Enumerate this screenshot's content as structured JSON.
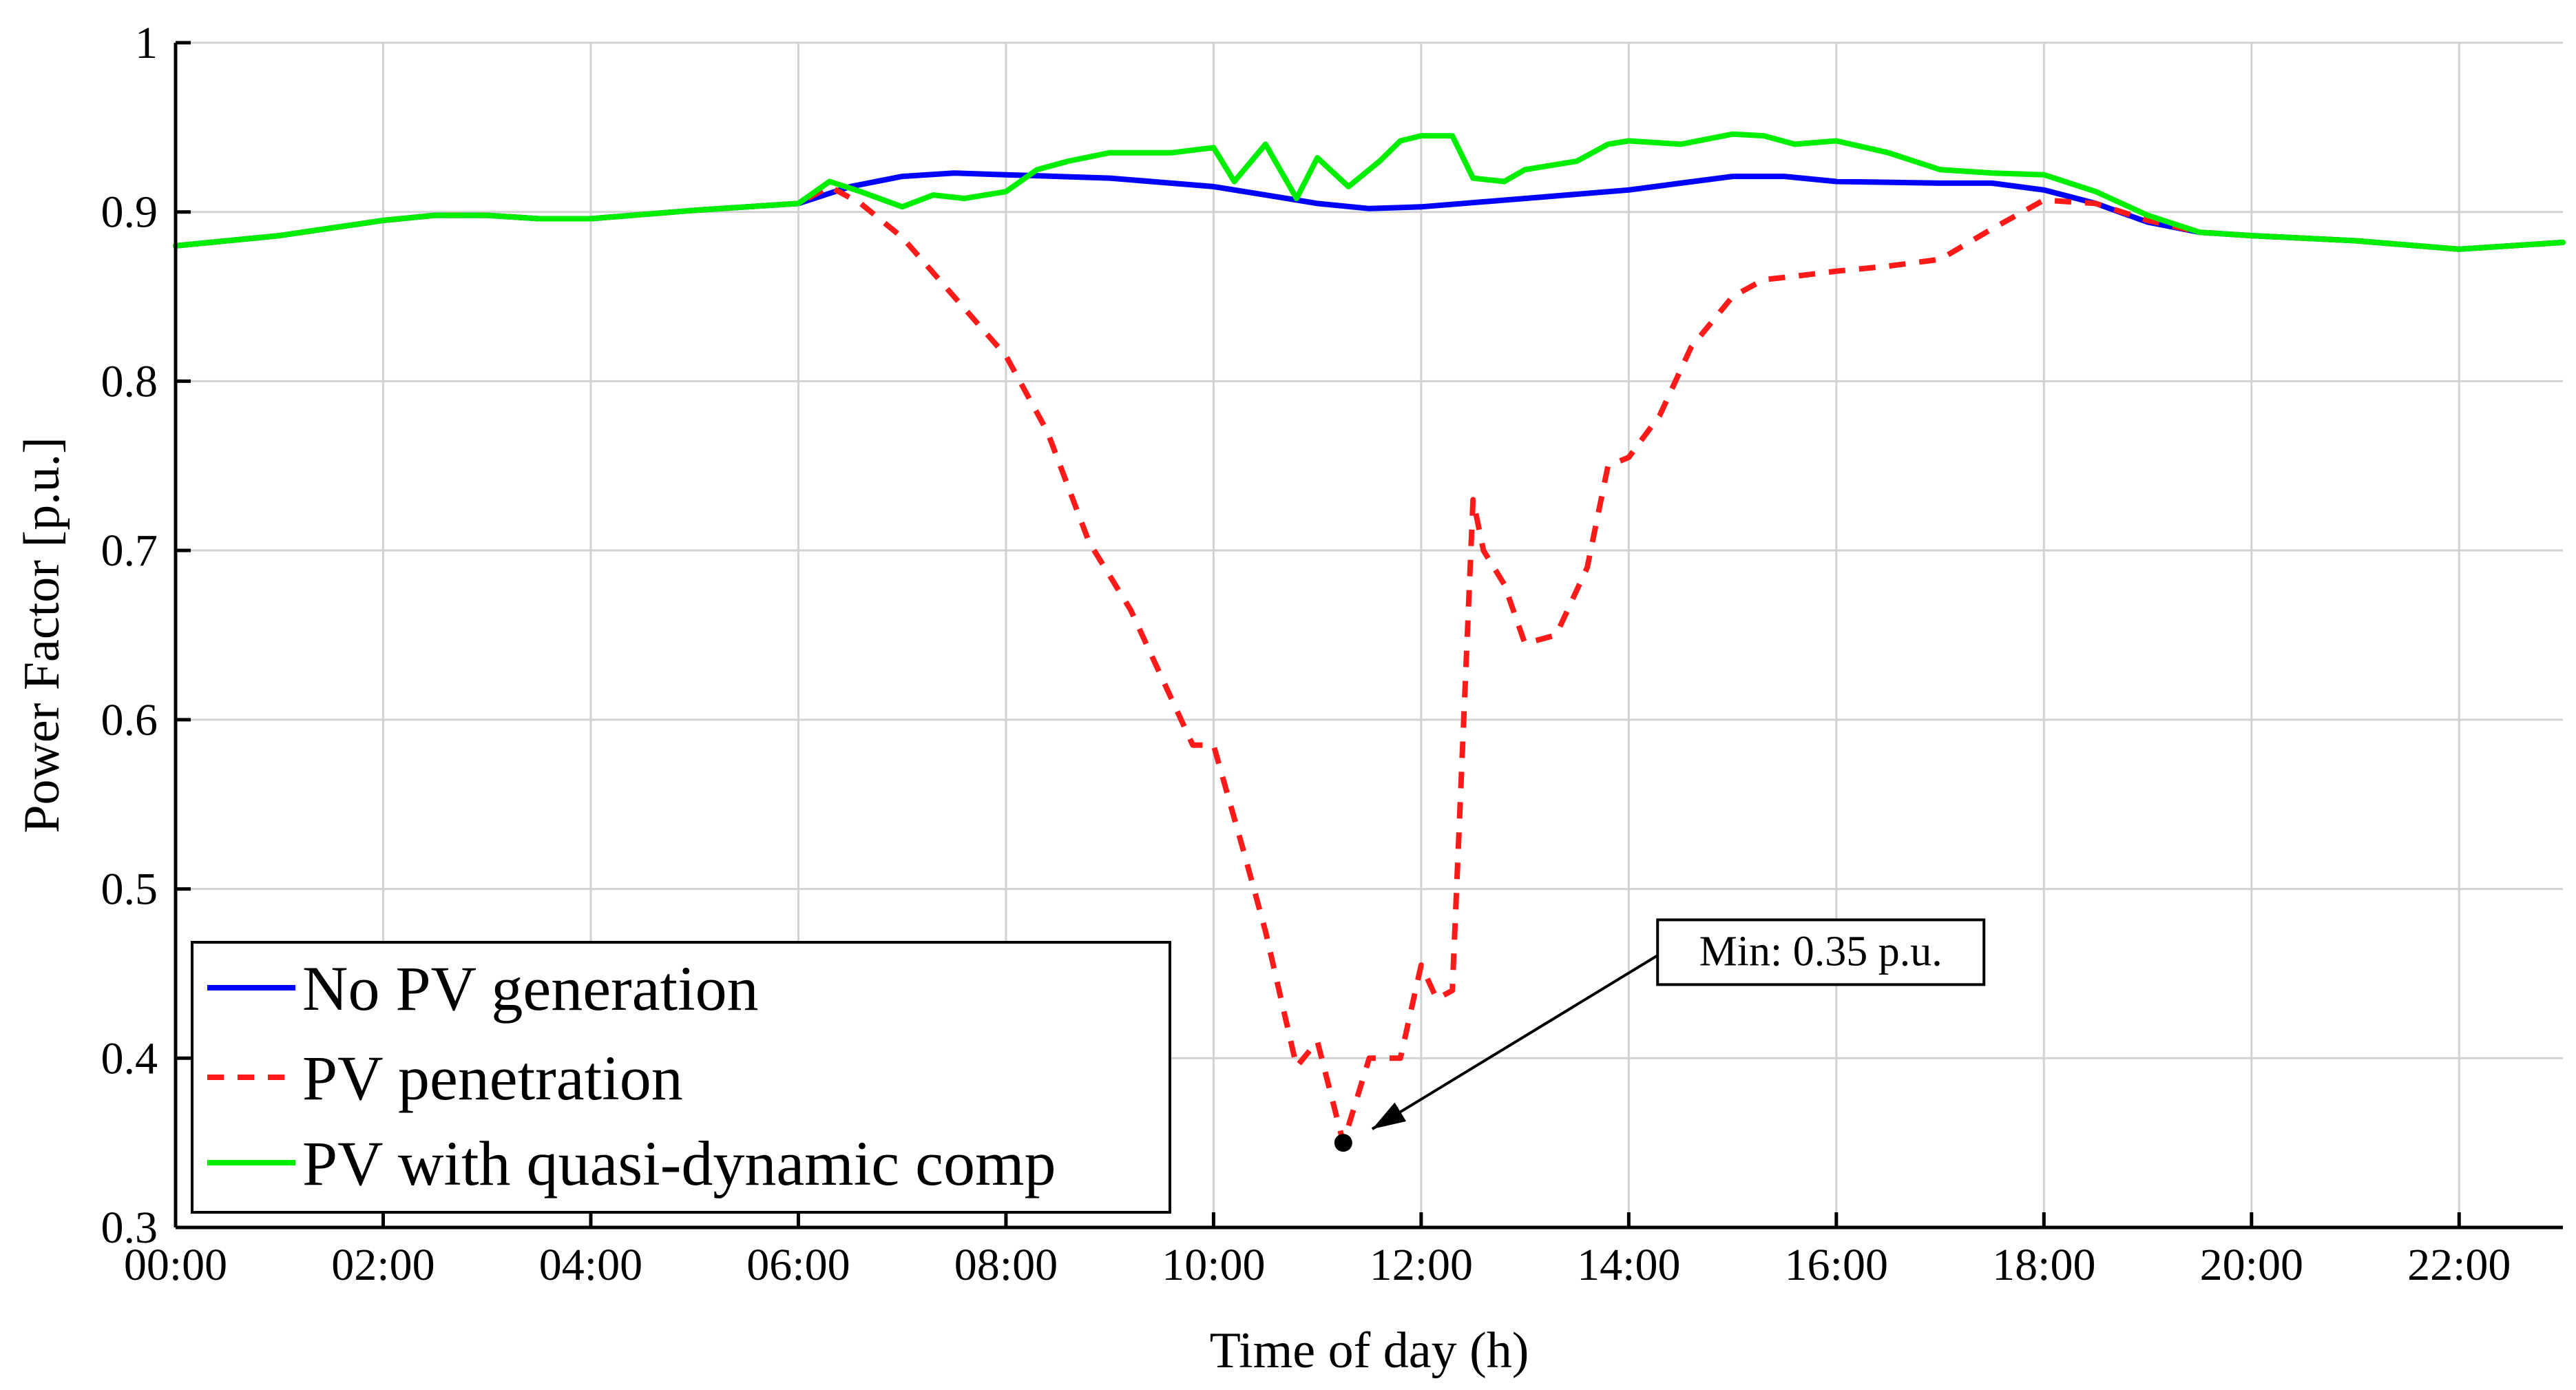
{
  "chart_data": {
    "type": "line",
    "title": "",
    "xlabel": "Time of day (h)",
    "ylabel": "Power Factor [p.u.]",
    "xlim": [
      0,
      23
    ],
    "ylim": [
      0.3,
      1.0
    ],
    "grid": true,
    "legend_position": "bottom-left",
    "x_ticks": [
      {
        "value": 0,
        "label": "00:00"
      },
      {
        "value": 2,
        "label": "02:00"
      },
      {
        "value": 4,
        "label": "04:00"
      },
      {
        "value": 6,
        "label": "06:00"
      },
      {
        "value": 8,
        "label": "08:00"
      },
      {
        "value": 10,
        "label": "10:00"
      },
      {
        "value": 12,
        "label": "12:00"
      },
      {
        "value": 14,
        "label": "14:00"
      },
      {
        "value": 16,
        "label": "16:00"
      },
      {
        "value": 18,
        "label": "18:00"
      },
      {
        "value": 20,
        "label": "20:00"
      },
      {
        "value": 22,
        "label": "22:00"
      }
    ],
    "y_ticks": [
      {
        "value": 0.3,
        "label": "0.3"
      },
      {
        "value": 0.4,
        "label": "0.4"
      },
      {
        "value": 0.5,
        "label": "0.5"
      },
      {
        "value": 0.6,
        "label": "0.6"
      },
      {
        "value": 0.7,
        "label": "0.7"
      },
      {
        "value": 0.8,
        "label": "0.8"
      },
      {
        "value": 0.9,
        "label": "0.9"
      },
      {
        "value": 1.0,
        "label": "1"
      }
    ],
    "series": [
      {
        "name": "No PV generation",
        "color": "#0000ff",
        "style": "solid",
        "points": [
          [
            0,
            0.88
          ],
          [
            1,
            0.886
          ],
          [
            2,
            0.895
          ],
          [
            2.5,
            0.898
          ],
          [
            3,
            0.898
          ],
          [
            3.5,
            0.896
          ],
          [
            4,
            0.896
          ],
          [
            5,
            0.901
          ],
          [
            6,
            0.905
          ],
          [
            6.5,
            0.915
          ],
          [
            7,
            0.921
          ],
          [
            7.5,
            0.923
          ],
          [
            8,
            0.922
          ],
          [
            9,
            0.92
          ],
          [
            10,
            0.915
          ],
          [
            10.5,
            0.91
          ],
          [
            11,
            0.905
          ],
          [
            11.5,
            0.902
          ],
          [
            12,
            0.903
          ],
          [
            13,
            0.908
          ],
          [
            14,
            0.913
          ],
          [
            14.5,
            0.917
          ],
          [
            15,
            0.921
          ],
          [
            15.5,
            0.921
          ],
          [
            16,
            0.918
          ],
          [
            17,
            0.917
          ],
          [
            17.5,
            0.917
          ],
          [
            18,
            0.913
          ],
          [
            18.5,
            0.905
          ],
          [
            19,
            0.894
          ],
          [
            19.5,
            0.888
          ],
          [
            20,
            0.886
          ],
          [
            21,
            0.883
          ],
          [
            22,
            0.878
          ],
          [
            23,
            0.882
          ]
        ]
      },
      {
        "name": "PV penetration",
        "color": "#ff1a1a",
        "style": "dashed",
        "points": [
          [
            0,
            0.88
          ],
          [
            1,
            0.886
          ],
          [
            2,
            0.895
          ],
          [
            2.5,
            0.898
          ],
          [
            3,
            0.898
          ],
          [
            3.5,
            0.896
          ],
          [
            4,
            0.896
          ],
          [
            5,
            0.901
          ],
          [
            6,
            0.905
          ],
          [
            6.3,
            0.915
          ],
          [
            6.6,
            0.905
          ],
          [
            7,
            0.885
          ],
          [
            7.5,
            0.85
          ],
          [
            8,
            0.815
          ],
          [
            8.4,
            0.77
          ],
          [
            8.8,
            0.705
          ],
          [
            9.2,
            0.665
          ],
          [
            9.5,
            0.625
          ],
          [
            9.8,
            0.585
          ],
          [
            10,
            0.585
          ],
          [
            10.3,
            0.52
          ],
          [
            10.5,
            0.475
          ],
          [
            10.8,
            0.395
          ],
          [
            11,
            0.41
          ],
          [
            11.25,
            0.35
          ],
          [
            11.5,
            0.4
          ],
          [
            11.8,
            0.4
          ],
          [
            12,
            0.455
          ],
          [
            12.15,
            0.435
          ],
          [
            12.3,
            0.44
          ],
          [
            12.5,
            0.73
          ],
          [
            12.6,
            0.7
          ],
          [
            12.8,
            0.68
          ],
          [
            13,
            0.645
          ],
          [
            13.3,
            0.65
          ],
          [
            13.6,
            0.69
          ],
          [
            13.8,
            0.75
          ],
          [
            14,
            0.755
          ],
          [
            14.3,
            0.78
          ],
          [
            14.6,
            0.82
          ],
          [
            15,
            0.85
          ],
          [
            15.3,
            0.86
          ],
          [
            15.6,
            0.862
          ],
          [
            16,
            0.865
          ],
          [
            16.5,
            0.868
          ],
          [
            17,
            0.872
          ],
          [
            17.5,
            0.89
          ],
          [
            18,
            0.907
          ],
          [
            18.5,
            0.905
          ],
          [
            19,
            0.895
          ],
          [
            19.5,
            0.888
          ],
          [
            20,
            0.886
          ],
          [
            21,
            0.883
          ],
          [
            22,
            0.878
          ],
          [
            23,
            0.882
          ]
        ]
      },
      {
        "name": "PV with quasi-dynamic comp",
        "color": "#00ee00",
        "style": "solid",
        "points": [
          [
            0,
            0.88
          ],
          [
            1,
            0.886
          ],
          [
            2,
            0.895
          ],
          [
            2.5,
            0.898
          ],
          [
            3,
            0.898
          ],
          [
            3.5,
            0.896
          ],
          [
            4,
            0.896
          ],
          [
            5,
            0.901
          ],
          [
            6,
            0.905
          ],
          [
            6.3,
            0.918
          ],
          [
            6.6,
            0.912
          ],
          [
            7,
            0.903
          ],
          [
            7.3,
            0.91
          ],
          [
            7.6,
            0.908
          ],
          [
            8,
            0.912
          ],
          [
            8.3,
            0.925
          ],
          [
            8.6,
            0.93
          ],
          [
            9,
            0.935
          ],
          [
            9.3,
            0.935
          ],
          [
            9.6,
            0.935
          ],
          [
            10,
            0.938
          ],
          [
            10.2,
            0.918
          ],
          [
            10.5,
            0.94
          ],
          [
            10.8,
            0.908
          ],
          [
            11,
            0.932
          ],
          [
            11.3,
            0.915
          ],
          [
            11.6,
            0.93
          ],
          [
            11.8,
            0.942
          ],
          [
            12,
            0.945
          ],
          [
            12.3,
            0.945
          ],
          [
            12.5,
            0.92
          ],
          [
            12.8,
            0.918
          ],
          [
            13,
            0.925
          ],
          [
            13.5,
            0.93
          ],
          [
            13.8,
            0.94
          ],
          [
            14,
            0.942
          ],
          [
            14.5,
            0.94
          ],
          [
            15,
            0.946
          ],
          [
            15.3,
            0.945
          ],
          [
            15.6,
            0.94
          ],
          [
            16,
            0.942
          ],
          [
            16.5,
            0.935
          ],
          [
            17,
            0.925
          ],
          [
            17.5,
            0.923
          ],
          [
            18,
            0.922
          ],
          [
            18.5,
            0.912
          ],
          [
            19,
            0.898
          ],
          [
            19.5,
            0.888
          ],
          [
            20,
            0.886
          ],
          [
            21,
            0.883
          ],
          [
            22,
            0.878
          ],
          [
            23,
            0.882
          ]
        ]
      }
    ],
    "annotation": {
      "label": "Min: 0.35 p.u.",
      "point": [
        11.25,
        0.35
      ],
      "label_anchor": [
        15.85,
        0.45
      ]
    }
  }
}
